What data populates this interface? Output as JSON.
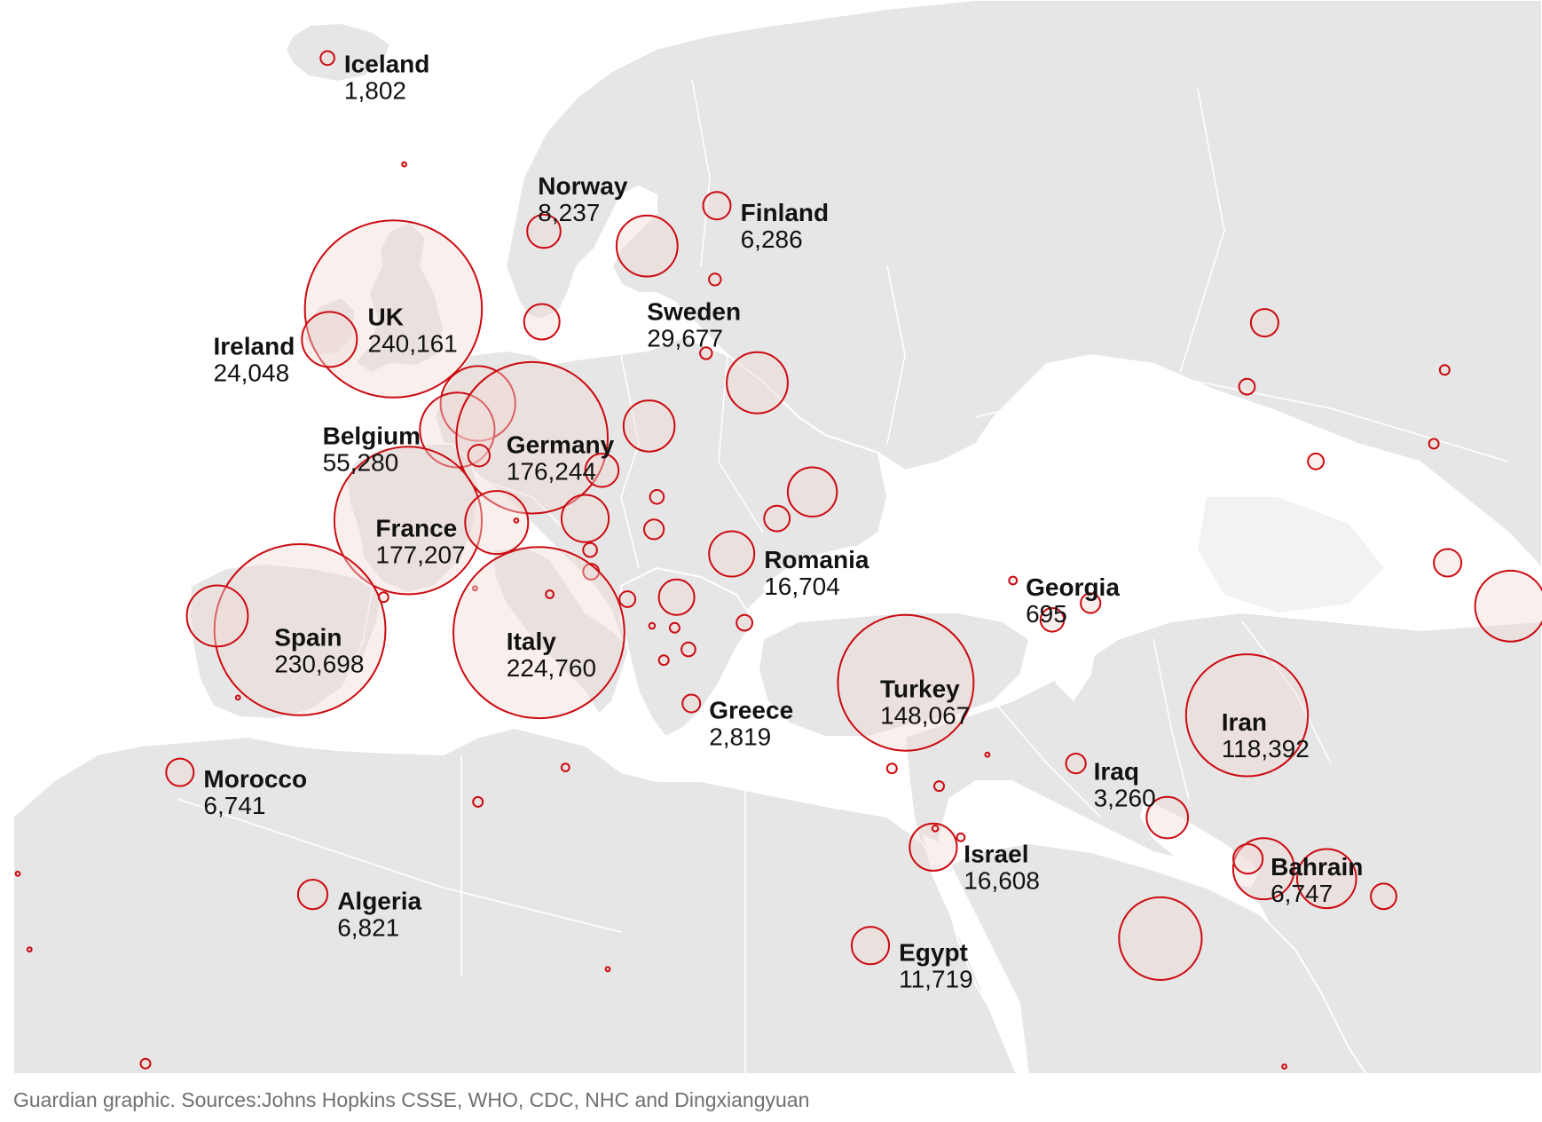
{
  "map": {
    "region": "Europe, North Africa and the Middle East",
    "metric": "confirmed coronavirus cases",
    "colors": {
      "land": "#e6e6e6",
      "sea": "#ffffff",
      "borders": "#ffffff",
      "bubble_stroke": "#cc0a11",
      "bubble_fill": "#f0dcd7",
      "text": "#121212",
      "note": "#707070"
    }
  },
  "labels": [
    {
      "name": "Iceland",
      "value": "1,802"
    },
    {
      "name": "Norway",
      "value": "8,237"
    },
    {
      "name": "Finland",
      "value": "6,286"
    },
    {
      "name": "Sweden",
      "value": "29,677"
    },
    {
      "name": "UK",
      "value": "240,161"
    },
    {
      "name": "Ireland",
      "value": "24,048"
    },
    {
      "name": "Belgium",
      "value": "55,280"
    },
    {
      "name": "Germany",
      "value": "176,244"
    },
    {
      "name": "France",
      "value": "177,207"
    },
    {
      "name": "Spain",
      "value": "230,698"
    },
    {
      "name": "Italy",
      "value": "224,760"
    },
    {
      "name": "Romania",
      "value": "16,704"
    },
    {
      "name": "Georgia",
      "value": "695"
    },
    {
      "name": "Turkey",
      "value": "148,067"
    },
    {
      "name": "Greece",
      "value": "2,819"
    },
    {
      "name": "Iran",
      "value": "118,392"
    },
    {
      "name": "Iraq",
      "value": "3,260"
    },
    {
      "name": "Morocco",
      "value": "6,741"
    },
    {
      "name": "Israel",
      "value": "16,608"
    },
    {
      "name": "Bahrain",
      "value": "6,747"
    },
    {
      "name": "Algeria",
      "value": "6,821"
    },
    {
      "name": "Egypt",
      "value": "11,719"
    }
  ],
  "source_note": "Guardian graphic. Sources:Johns Hopkins CSSE, WHO, CDC, NHC and Dingxiangyuan"
}
